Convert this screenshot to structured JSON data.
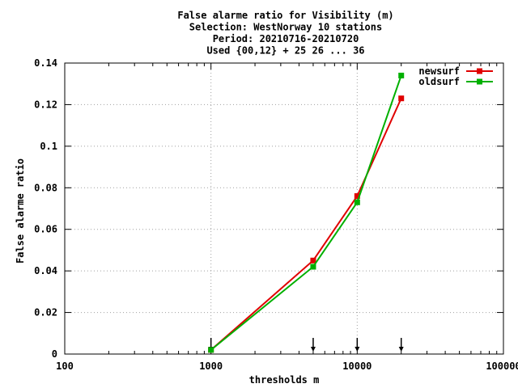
{
  "chart_data": {
    "type": "line",
    "title_lines": [
      "False alarme ratio  for Visibility (m)",
      "Selection: WestNorway     10 stations",
      "Period: 20210716-20210720",
      "Used {00,12} + 25 26 ... 36"
    ],
    "xlabel": "thresholds m",
    "ylabel": "False alarme ratio",
    "x_scale": "log",
    "xlim": [
      100,
      100000
    ],
    "ylim": [
      0,
      0.14
    ],
    "x_ticks": [
      {
        "value": 100,
        "label": "100"
      },
      {
        "value": 1000,
        "label": "1000"
      },
      {
        "value": 10000,
        "label": "10000"
      },
      {
        "value": 100000,
        "label": "100000"
      }
    ],
    "y_ticks": [
      {
        "value": 0,
        "label": "0"
      },
      {
        "value": 0.02,
        "label": "0.02"
      },
      {
        "value": 0.04,
        "label": "0.04"
      },
      {
        "value": 0.06,
        "label": "0.06"
      },
      {
        "value": 0.08,
        "label": "0.08"
      },
      {
        "value": 0.1,
        "label": "0.1"
      },
      {
        "value": 0.12,
        "label": "0.12"
      },
      {
        "value": 0.14,
        "label": "0.14"
      }
    ],
    "grid": true,
    "legend_position": "top-right",
    "threshold_markers": [
      1000,
      5000,
      10000,
      20000
    ],
    "series": [
      {
        "name": "newsurf",
        "color": "#e00000",
        "x": [
          1000,
          5000,
          10000,
          20000
        ],
        "y": [
          0.002,
          0.045,
          0.076,
          0.123
        ]
      },
      {
        "name": "oldsurf",
        "color": "#00b000",
        "x": [
          1000,
          5000,
          10000,
          20000
        ],
        "y": [
          0.002,
          0.042,
          0.073,
          0.134
        ]
      }
    ]
  }
}
